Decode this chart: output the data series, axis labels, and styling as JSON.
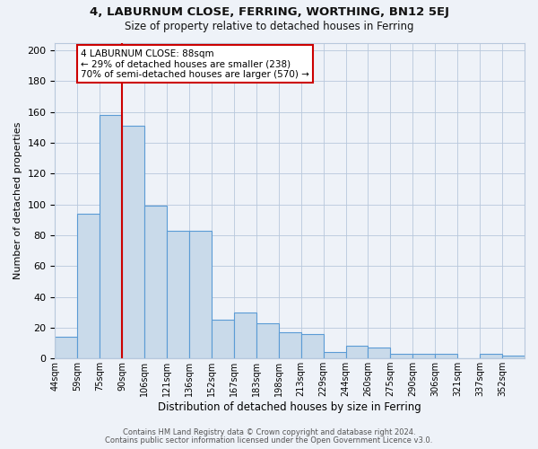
{
  "title": "4, LABURNUM CLOSE, FERRING, WORTHING, BN12 5EJ",
  "subtitle": "Size of property relative to detached houses in Ferring",
  "xlabel": "Distribution of detached houses by size in Ferring",
  "ylabel": "Number of detached properties",
  "bar_labels": [
    "44sqm",
    "59sqm",
    "75sqm",
    "90sqm",
    "106sqm",
    "121sqm",
    "136sqm",
    "152sqm",
    "167sqm",
    "183sqm",
    "198sqm",
    "213sqm",
    "229sqm",
    "244sqm",
    "260sqm",
    "275sqm",
    "290sqm",
    "306sqm",
    "321sqm",
    "337sqm",
    "352sqm"
  ],
  "bar_values": [
    14,
    94,
    158,
    151,
    99,
    83,
    83,
    25,
    30,
    23,
    17,
    16,
    4,
    8,
    7,
    3,
    3,
    3,
    0,
    3,
    2
  ],
  "bar_color": "#c9daea",
  "bar_edge_color": "#5b9bd5",
  "bg_color": "#eef2f8",
  "plot_bg_color": "#eef2f8",
  "red_line_x": 3,
  "annotation_title": "4 LABURNUM CLOSE: 88sqm",
  "annotation_line1": "← 29% of detached houses are smaller (238)",
  "annotation_line2": "70% of semi-detached houses are larger (570) →",
  "annotation_box_color": "#ffffff",
  "annotation_box_edge": "#cc0000",
  "ylim": [
    0,
    205
  ],
  "yticks": [
    0,
    20,
    40,
    60,
    80,
    100,
    120,
    140,
    160,
    180,
    200
  ],
  "footer1": "Contains HM Land Registry data © Crown copyright and database right 2024.",
  "footer2": "Contains public sector information licensed under the Open Government Licence v3.0."
}
